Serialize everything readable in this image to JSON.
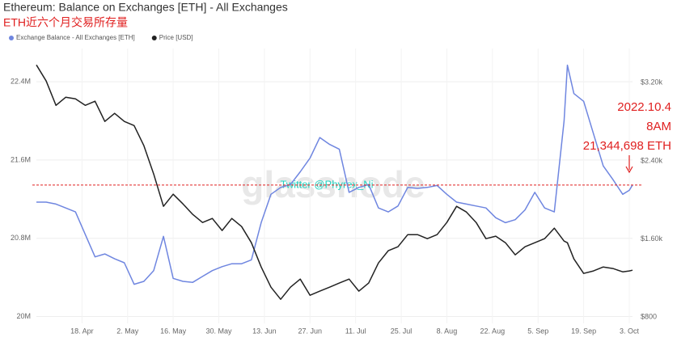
{
  "chart_data": {
    "type": "line",
    "title": "Ethereum: Balance on Exchanges [ETH] - All Exchanges",
    "subtitle": "ETH近六个月交易所存量",
    "watermark": "glassnode",
    "credit": "Twitter @Phyrex_Ni",
    "annotations": [
      "2022.10.4",
      "8AM",
      "21,344,698 ETH"
    ],
    "annotation_color": "#e02020",
    "x": [
      "04-04",
      "04-07",
      "04-10",
      "04-13",
      "04-16",
      "04-19",
      "04-22",
      "04-25",
      "04-28",
      "05-01",
      "05-04",
      "05-07",
      "05-10",
      "05-13",
      "05-16",
      "05-19",
      "05-22",
      "05-25",
      "05-28",
      "05-31",
      "06-03",
      "06-06",
      "06-09",
      "06-12",
      "06-15",
      "06-18",
      "06-21",
      "06-24",
      "06-27",
      "06-30",
      "07-03",
      "07-06",
      "07-09",
      "07-12",
      "07-15",
      "07-18",
      "07-21",
      "07-24",
      "07-27",
      "07-30",
      "08-02",
      "08-05",
      "08-08",
      "08-11",
      "08-14",
      "08-17",
      "08-20",
      "08-23",
      "08-26",
      "08-29",
      "09-01",
      "09-04",
      "09-07",
      "09-10",
      "09-13",
      "09-14",
      "09-16",
      "09-19",
      "09-22",
      "09-25",
      "09-28",
      "10-01",
      "10-03",
      "10-04"
    ],
    "xlim": [
      "04-04",
      "10-04"
    ],
    "xticks": [
      {
        "value": "04-18",
        "label": "18. Apr"
      },
      {
        "value": "05-02",
        "label": "2. May"
      },
      {
        "value": "05-16",
        "label": "16. May"
      },
      {
        "value": "05-30",
        "label": "30. May"
      },
      {
        "value": "06-13",
        "label": "13. Jun"
      },
      {
        "value": "06-27",
        "label": "27. Jun"
      },
      {
        "value": "07-11",
        "label": "11. Jul"
      },
      {
        "value": "07-25",
        "label": "25. Jul"
      },
      {
        "value": "08-08",
        "label": "8. Aug"
      },
      {
        "value": "08-22",
        "label": "22. Aug"
      },
      {
        "value": "09-05",
        "label": "5. Sep"
      },
      {
        "value": "09-19",
        "label": "19. Sep"
      },
      {
        "value": "10-03",
        "label": "3. Oct"
      }
    ],
    "ylim": [
      19930000,
      22740000
    ],
    "yticks": [
      {
        "value": 20000000,
        "label": "20M"
      },
      {
        "value": 20800000,
        "label": "20.8M"
      },
      {
        "value": 21600000,
        "label": "21.6M"
      },
      {
        "value": 22400000,
        "label": "22.4M"
      }
    ],
    "y2lim": [
      735,
      3550
    ],
    "y2ticks": [
      {
        "value": 800,
        "label": "$800"
      },
      {
        "value": 1600,
        "label": "$1.60k"
      },
      {
        "value": 2400,
        "label": "$2.40k"
      },
      {
        "value": 3200,
        "label": "$3.20k"
      }
    ],
    "grid": true,
    "legend": "top-left",
    "series": [
      {
        "name": "Exchange Balance - All Exchanges [ETH]",
        "color": "#6f86e0",
        "values": [
          21170000,
          21170000,
          21150000,
          21110000,
          21070000,
          20840000,
          20610000,
          20640000,
          20590000,
          20550000,
          20330000,
          20360000,
          20470000,
          20820000,
          20390000,
          20360000,
          20350000,
          20410000,
          20470000,
          20510000,
          20540000,
          20540000,
          20580000,
          20960000,
          21250000,
          21320000,
          21350000,
          21480000,
          21620000,
          21830000,
          21760000,
          21710000,
          21270000,
          21320000,
          21350000,
          21110000,
          21070000,
          21130000,
          21320000,
          21310000,
          21320000,
          21340000,
          21250000,
          21170000,
          21150000,
          21130000,
          21110000,
          21010000,
          20960000,
          20990000,
          21090000,
          21270000,
          21110000,
          21070000,
          22000000,
          22570000,
          22280000,
          22200000,
          21870000,
          21540000,
          21400000,
          21250000,
          21290000,
          21344698
        ]
      },
      {
        "name": "Price [USD]",
        "color": "#222222",
        "axis": "y2",
        "values": [
          3382,
          3217,
          2968,
          3051,
          3035,
          2968,
          3010,
          2803,
          2886,
          2803,
          2761,
          2555,
          2265,
          1934,
          2058,
          1959,
          1851,
          1768,
          1810,
          1686,
          1810,
          1727,
          1561,
          1313,
          1106,
          982,
          1106,
          1189,
          1023,
          1065,
          1106,
          1148,
          1189,
          1065,
          1148,
          1354,
          1479,
          1520,
          1644,
          1644,
          1603,
          1644,
          1768,
          1934,
          1876,
          1768,
          1603,
          1628,
          1561,
          1437,
          1520,
          1561,
          1603,
          1710,
          1578,
          1561,
          1396,
          1247,
          1272,
          1313,
          1297,
          1263,
          1272,
          1280
        ]
      }
    ]
  }
}
